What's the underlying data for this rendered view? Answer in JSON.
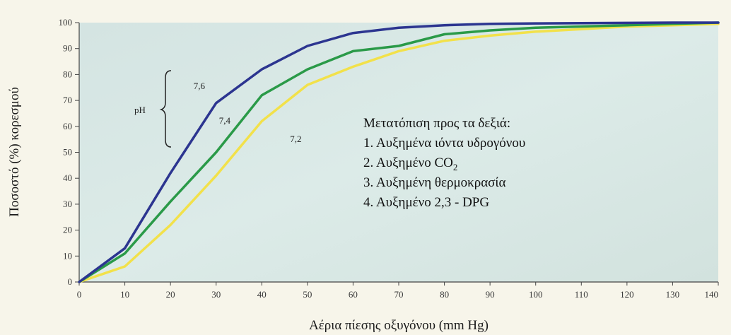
{
  "chart_data": {
    "type": "line",
    "xlabel": "Αέρια πίεσης οξυγόνου (mm Hg)",
    "ylabel": "Ποσοστό (%) κορεσμού",
    "xlim": [
      0,
      140
    ],
    "ylim": [
      0,
      100
    ],
    "x_ticks": [
      0,
      10,
      20,
      30,
      40,
      50,
      60,
      70,
      80,
      90,
      100,
      110,
      120,
      130,
      140
    ],
    "x_tick_labels": [
      "0",
      "10",
      "20",
      "30",
      "40",
      "50",
      "60",
      "70",
      "80",
      "90",
      "100",
      "110",
      "120",
      "130",
      "140"
    ],
    "y_ticks": [
      0,
      10,
      20,
      30,
      40,
      50,
      60,
      70,
      80,
      90,
      100
    ],
    "y_tick_labels": [
      "0",
      "10",
      "20",
      "30",
      "40",
      "50",
      "60",
      "70",
      "80",
      "90",
      "100"
    ],
    "grid": false,
    "series": [
      {
        "name": "7,6",
        "color": "#2c3590",
        "x": [
          0,
          10,
          20,
          30,
          40,
          50,
          60,
          70,
          80,
          90,
          100,
          110,
          120,
          130,
          140
        ],
        "y": [
          0,
          13,
          42,
          69,
          82,
          91,
          96,
          98,
          99,
          99.5,
          99.7,
          99.8,
          99.9,
          100,
          100
        ]
      },
      {
        "name": "7,4",
        "color": "#2a9a48",
        "x": [
          0,
          10,
          20,
          30,
          40,
          50,
          60,
          70,
          80,
          90,
          100,
          110,
          120,
          130,
          140
        ],
        "y": [
          0,
          11,
          31,
          50,
          72,
          82,
          89,
          91,
          95.5,
          97,
          98,
          98.5,
          99,
          99.5,
          100
        ]
      },
      {
        "name": "7,2",
        "color": "#f2e14a",
        "x": [
          0,
          10,
          20,
          30,
          40,
          50,
          60,
          70,
          80,
          90,
          100,
          110,
          120,
          130,
          140
        ],
        "y": [
          0,
          6,
          22,
          41,
          62,
          76,
          83,
          89,
          93,
          95,
          96.5,
          97.5,
          98.5,
          99,
          99.5
        ]
      }
    ],
    "annotations": {
      "ph_label": "pH",
      "shift_title": "Μετατόπιση προς τα δεξιά:",
      "shift_items": [
        "1. Αυξημένα ιόντα υδρογόνου",
        "2. Αυξημένο CO",
        "3. Αυξημένη θερμοκρασία",
        "4. Αυξημένο 2,3 - DPG"
      ],
      "co2_subscript": "2"
    }
  }
}
